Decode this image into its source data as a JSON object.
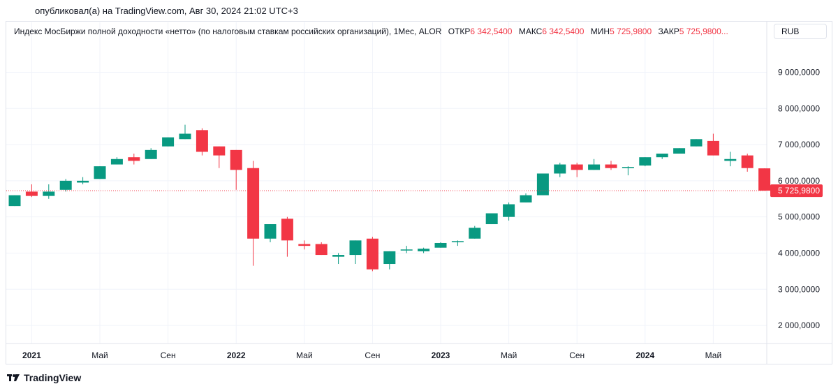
{
  "header": {
    "published": "опубликовал(а) на TradingView.com, Авг 30, 2024 21:02 UTC+3"
  },
  "legend": {
    "title": "Индекс МосБиржи полной доходности «нетто» (по налоговым ставкам российских организаций), 1Мес, ALOR",
    "open_label": "ОТКР",
    "open_value": "6 342,5400",
    "high_label": "МАКС",
    "high_value": "6 342,5400",
    "low_label": "МИН",
    "low_value": "5 725,9800",
    "close_label": "ЗАКР",
    "close_value": "5 725,9800..."
  },
  "currency": "RUB",
  "footer": {
    "brand": "TradingView"
  },
  "colors": {
    "up": "#089981",
    "down": "#f23645",
    "grid": "#f0f3fa",
    "text": "#131722",
    "last_price_line": "#f23645"
  },
  "chart_data": {
    "type": "candlestick",
    "period": "1Мес",
    "ylim": [
      1500,
      9800
    ],
    "y_ticks": [
      {
        "value": 2000,
        "label": "2 000,0000"
      },
      {
        "value": 3000,
        "label": "3 000,0000"
      },
      {
        "value": 4000,
        "label": "4 000,0000"
      },
      {
        "value": 5000,
        "label": "5 000,0000"
      },
      {
        "value": 6000,
        "label": "6 000,0000"
      },
      {
        "value": 7000,
        "label": "7 000,0000"
      },
      {
        "value": 8000,
        "label": "8 000,0000"
      },
      {
        "value": 9000,
        "label": "9 000,0000"
      }
    ],
    "x_ticks": [
      {
        "index": 1,
        "label": "2021",
        "bold": true
      },
      {
        "index": 5,
        "label": "Май",
        "bold": false
      },
      {
        "index": 9,
        "label": "Сен",
        "bold": false
      },
      {
        "index": 13,
        "label": "2022",
        "bold": true
      },
      {
        "index": 17,
        "label": "Май",
        "bold": false
      },
      {
        "index": 21,
        "label": "Сен",
        "bold": false
      },
      {
        "index": 25,
        "label": "2023",
        "bold": true
      },
      {
        "index": 29,
        "label": "Май",
        "bold": false
      },
      {
        "index": 33,
        "label": "Сен",
        "bold": false
      },
      {
        "index": 37,
        "label": "2024",
        "bold": true
      },
      {
        "index": 41,
        "label": "Май",
        "bold": false
      }
    ],
    "last_price": {
      "value": 5725.98,
      "label": "5 725,9800"
    },
    "candles": [
      {
        "period": "2020-12",
        "o": 5300,
        "h": 5600,
        "l": 5300,
        "c": 5600
      },
      {
        "period": "2021-01",
        "o": 5700,
        "h": 5900,
        "l": 5550,
        "c": 5580
      },
      {
        "period": "2021-02",
        "o": 5580,
        "h": 5900,
        "l": 5500,
        "c": 5700
      },
      {
        "period": "2021-03",
        "o": 5750,
        "h": 6050,
        "l": 5700,
        "c": 6000
      },
      {
        "period": "2021-04",
        "o": 5950,
        "h": 6100,
        "l": 5900,
        "c": 6000
      },
      {
        "period": "2021-05",
        "o": 6050,
        "h": 6400,
        "l": 6050,
        "c": 6400
      },
      {
        "period": "2021-06",
        "o": 6450,
        "h": 6650,
        "l": 6450,
        "c": 6600
      },
      {
        "period": "2021-07",
        "o": 6650,
        "h": 6750,
        "l": 6450,
        "c": 6550
      },
      {
        "period": "2021-08",
        "o": 6600,
        "h": 6900,
        "l": 6600,
        "c": 6850
      },
      {
        "period": "2021-09",
        "o": 6950,
        "h": 7200,
        "l": 6950,
        "c": 7200
      },
      {
        "period": "2021-10",
        "o": 7150,
        "h": 7550,
        "l": 7150,
        "c": 7300
      },
      {
        "period": "2021-11",
        "o": 7400,
        "h": 7450,
        "l": 6700,
        "c": 6800
      },
      {
        "period": "2021-12",
        "o": 6950,
        "h": 6950,
        "l": 6350,
        "c": 6700
      },
      {
        "period": "2022-01",
        "o": 6850,
        "h": 6850,
        "l": 5750,
        "c": 6300
      },
      {
        "period": "2022-02",
        "o": 6350,
        "h": 6550,
        "l": 3650,
        "c": 4400
      },
      {
        "period": "2022-03",
        "o": 4400,
        "h": 4800,
        "l": 4300,
        "c": 4800
      },
      {
        "period": "2022-04",
        "o": 4950,
        "h": 5000,
        "l": 3900,
        "c": 4350
      },
      {
        "period": "2022-05",
        "o": 4250,
        "h": 4350,
        "l": 4100,
        "c": 4200
      },
      {
        "period": "2022-06",
        "o": 4250,
        "h": 4300,
        "l": 3950,
        "c": 3950
      },
      {
        "period": "2022-07",
        "o": 3900,
        "h": 4000,
        "l": 3700,
        "c": 3950
      },
      {
        "period": "2022-08",
        "o": 3950,
        "h": 4350,
        "l": 3700,
        "c": 4350
      },
      {
        "period": "2022-09",
        "o": 4400,
        "h": 4450,
        "l": 3500,
        "c": 3550
      },
      {
        "period": "2022-10",
        "o": 3700,
        "h": 4050,
        "l": 3550,
        "c": 4050
      },
      {
        "period": "2022-11",
        "o": 4080,
        "h": 4200,
        "l": 4000,
        "c": 4100
      },
      {
        "period": "2022-12",
        "o": 4050,
        "h": 4150,
        "l": 4000,
        "c": 4120
      },
      {
        "period": "2023-01",
        "o": 4150,
        "h": 4300,
        "l": 4150,
        "c": 4280
      },
      {
        "period": "2023-02",
        "o": 4300,
        "h": 4350,
        "l": 4200,
        "c": 4330
      },
      {
        "period": "2023-03",
        "o": 4400,
        "h": 4750,
        "l": 4400,
        "c": 4700
      },
      {
        "period": "2023-04",
        "o": 4800,
        "h": 5100,
        "l": 4800,
        "c": 5100
      },
      {
        "period": "2023-05",
        "o": 5000,
        "h": 5400,
        "l": 4900,
        "c": 5350
      },
      {
        "period": "2023-06",
        "o": 5400,
        "h": 5650,
        "l": 5400,
        "c": 5600
      },
      {
        "period": "2023-07",
        "o": 5600,
        "h": 6200,
        "l": 5600,
        "c": 6200
      },
      {
        "period": "2023-08",
        "o": 6200,
        "h": 6500,
        "l": 6100,
        "c": 6450
      },
      {
        "period": "2023-09",
        "o": 6450,
        "h": 6500,
        "l": 6100,
        "c": 6300
      },
      {
        "period": "2023-10",
        "o": 6300,
        "h": 6600,
        "l": 6300,
        "c": 6450
      },
      {
        "period": "2023-11",
        "o": 6450,
        "h": 6550,
        "l": 6300,
        "c": 6350
      },
      {
        "period": "2023-12",
        "o": 6350,
        "h": 6400,
        "l": 6150,
        "c": 6380
      },
      {
        "period": "2024-01",
        "o": 6420,
        "h": 6650,
        "l": 6400,
        "c": 6650
      },
      {
        "period": "2024-02",
        "o": 6650,
        "h": 6750,
        "l": 6600,
        "c": 6750
      },
      {
        "period": "2024-03",
        "o": 6750,
        "h": 6900,
        "l": 6750,
        "c": 6900
      },
      {
        "period": "2024-04",
        "o": 6950,
        "h": 7150,
        "l": 6950,
        "c": 7150
      },
      {
        "period": "2024-05",
        "o": 7100,
        "h": 7300,
        "l": 6700,
        "c": 6700
      },
      {
        "period": "2024-06",
        "o": 6550,
        "h": 6800,
        "l": 6400,
        "c": 6600
      },
      {
        "period": "2024-07",
        "o": 6700,
        "h": 6750,
        "l": 6250,
        "c": 6350
      },
      {
        "period": "2024-08",
        "o": 6342.54,
        "h": 6342.54,
        "l": 5725.98,
        "c": 5725.98
      }
    ]
  }
}
